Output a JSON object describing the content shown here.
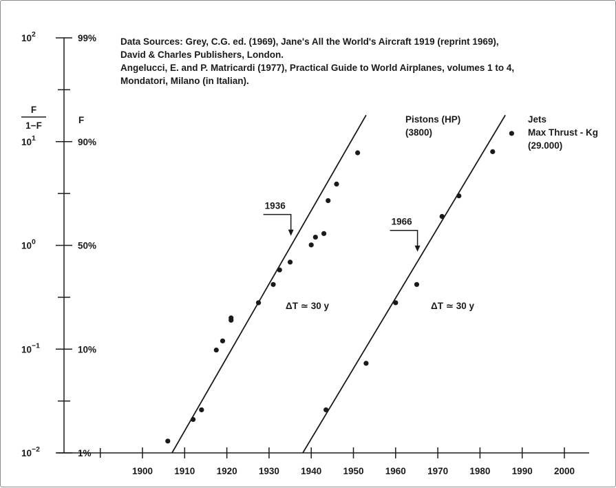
{
  "chart_data": {
    "type": "scatter",
    "y_scale": "logit",
    "notes": [
      "Data Sources: Grey, C.G. ed. (1969), Jane's All the World's Aircraft 1919 (reprint 1969),",
      "David & Charles Publishers, London.",
      "Angelucci, E. and P. Matricardi (1977), Practical Guide to World Airplanes, volumes 1 to 4,",
      "Mondatori, Milano (in Italian)."
    ],
    "ylabel_left": {
      "num": "F",
      "den": "1−F"
    },
    "ylabel_right": "F",
    "y_ticks_ratio": [
      {
        "base": "10",
        "exp": "2",
        "value": 100
      },
      {
        "base": "10",
        "exp": "1",
        "value": 10
      },
      {
        "base": "10",
        "exp": "0",
        "value": 1
      },
      {
        "base": "10",
        "exp": "−1",
        "value": 0.1
      },
      {
        "base": "10",
        "exp": "−2",
        "value": 0.01
      }
    ],
    "y_ticks_percent": [
      "99%",
      "90%",
      "50%",
      "10%",
      "1%"
    ],
    "x_ticks": [
      "1900",
      "1910",
      "1920",
      "1930",
      "1940",
      "1950",
      "1960",
      "1970",
      "1980",
      "1990",
      "2000"
    ],
    "xlim": [
      1883,
      2003
    ],
    "series": [
      {
        "name": "Pistons (HP)",
        "subtitle": "(3800)",
        "points": [
          {
            "x": 1906,
            "y": 0.013
          },
          {
            "x": 1912,
            "y": 0.021
          },
          {
            "x": 1914,
            "y": 0.026
          },
          {
            "x": 1917.5,
            "y": 0.098
          },
          {
            "x": 1919,
            "y": 0.12
          },
          {
            "x": 1921,
            "y": 0.19
          },
          {
            "x": 1921,
            "y": 0.2
          },
          {
            "x": 1927.5,
            "y": 0.28
          },
          {
            "x": 1931,
            "y": 0.42
          },
          {
            "x": 1932.5,
            "y": 0.58
          },
          {
            "x": 1935,
            "y": 0.69
          },
          {
            "x": 1940,
            "y": 1.01
          },
          {
            "x": 1941,
            "y": 1.2
          },
          {
            "x": 1943,
            "y": 1.3
          },
          {
            "x": 1944,
            "y": 2.7
          },
          {
            "x": 1946,
            "y": 3.9
          },
          {
            "x": 1951,
            "y": 7.8
          }
        ],
        "trend": {
          "x": [
            1907,
            1953
          ],
          "y": [
            0.01,
            18
          ]
        },
        "marker": {
          "label": "1936",
          "x": 1936
        }
      },
      {
        "name": "Jets",
        "subtitle_lines": [
          "Max Thrust - Kg",
          "(29.000)"
        ],
        "points": [
          {
            "x": 1943.5,
            "y": 0.026
          },
          {
            "x": 1953,
            "y": 0.073
          },
          {
            "x": 1960,
            "y": 0.28
          },
          {
            "x": 1965,
            "y": 0.42
          },
          {
            "x": 1971,
            "y": 1.9
          },
          {
            "x": 1975,
            "y": 3.0
          },
          {
            "x": 1983,
            "y": 8.0
          },
          {
            "x": 1987.5,
            "y": 12.0
          }
        ],
        "trend": {
          "x": [
            1938,
            1986
          ],
          "y": [
            0.01,
            18
          ]
        },
        "marker": {
          "label": "1966",
          "x": 1966
        }
      }
    ],
    "annotations": [
      {
        "text": "ΔT ≃ 30 y",
        "series": 0
      },
      {
        "text": "ΔT ≃ 30 y",
        "series": 1
      }
    ]
  }
}
